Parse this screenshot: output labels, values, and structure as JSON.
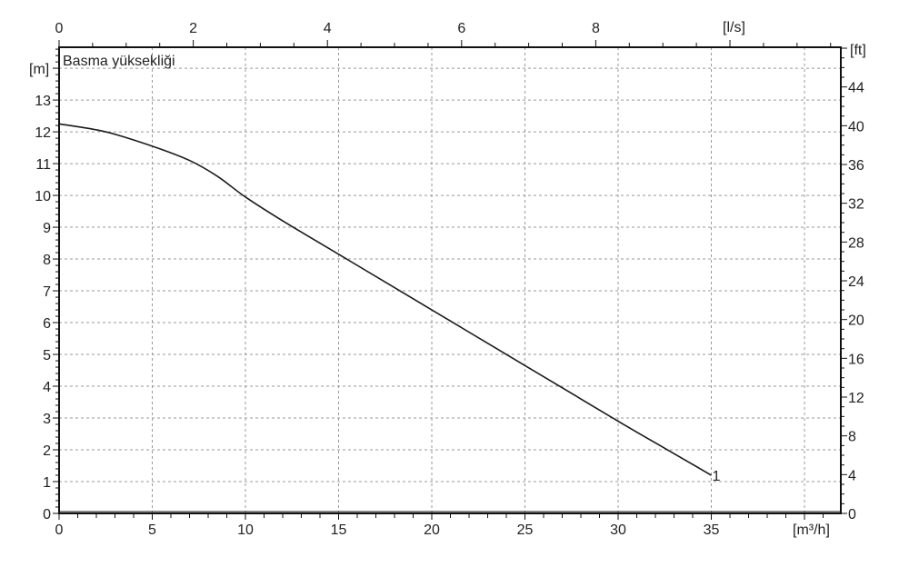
{
  "chart_data": {
    "type": "line",
    "title": "Basma yüksekliği",
    "xlabel": "[m³/h]",
    "x2label": "[l/s]",
    "ylabel": "[m]",
    "y2label": "[ft]",
    "xlim": [
      0,
      41.95
    ],
    "ylim": [
      0,
      14.66
    ],
    "xticks": [
      0,
      5,
      10,
      15,
      20,
      25,
      30,
      35
    ],
    "x2ticks": [
      0,
      2,
      4,
      6,
      8
    ],
    "yticks": [
      0,
      1,
      2,
      3,
      4,
      5,
      6,
      7,
      8,
      9,
      10,
      11,
      12,
      13
    ],
    "y2ticks": [
      0,
      4,
      8,
      12,
      16,
      20,
      24,
      28,
      32,
      36,
      40,
      44
    ],
    "grid": true,
    "series": [
      {
        "name": "1",
        "x": [
          0,
          2.5,
          5,
          7,
          8.5,
          10,
          12,
          15,
          20,
          25,
          30,
          32.5,
          35
        ],
        "y": [
          12.25,
          12.0,
          11.55,
          11.1,
          10.6,
          9.95,
          9.2,
          8.15,
          6.4,
          4.65,
          2.9,
          2.05,
          1.2
        ]
      }
    ],
    "line_color": "#1a1a1a"
  }
}
